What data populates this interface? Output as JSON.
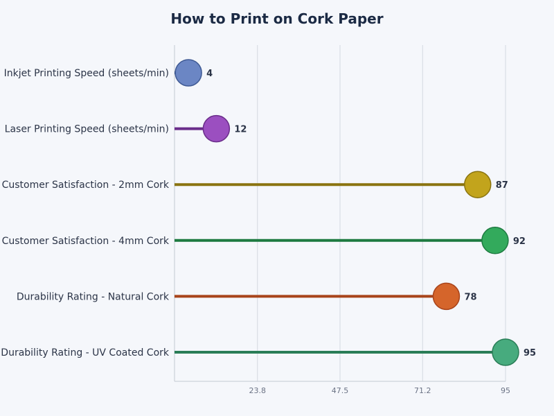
{
  "chart_data": {
    "type": "lollipop",
    "title": "How to Print on Cork Paper",
    "xlabel": "",
    "ylabel": "",
    "xlim": [
      0,
      95
    ],
    "x_ticks": [
      23.8,
      47.5,
      71.2,
      95
    ],
    "x_tick_labels": [
      "23.8",
      "47.5",
      "71.2",
      "95"
    ],
    "grid": true,
    "categories": [
      "Inkjet Printing Speed (sheets/min)",
      "Laser Printing Speed (sheets/min)",
      "Customer Satisfaction - 2mm Cork",
      "Customer Satisfaction - 4mm Cork",
      "Durability Rating - Natural Cork",
      "Durability Rating - UV Coated Cork"
    ],
    "values": [
      4,
      12,
      87,
      92,
      78,
      95
    ],
    "colors": [
      {
        "fill": "#6b86c4",
        "stroke": "#3f5a94",
        "line": "#3f5a94"
      },
      {
        "fill": "#9b4fc0",
        "stroke": "#6a2d8a",
        "line": "#6a2d8a"
      },
      {
        "fill": "#c2a41c",
        "stroke": "#8a7410",
        "line": "#8a7410"
      },
      {
        "fill": "#33aa5c",
        "stroke": "#1d7a40",
        "line": "#1d7a40"
      },
      {
        "fill": "#d5652b",
        "stroke": "#a8441b",
        "line": "#a8441b"
      },
      {
        "fill": "#47ab7e",
        "stroke": "#2a7d57",
        "line": "#2a7d57"
      }
    ]
  }
}
